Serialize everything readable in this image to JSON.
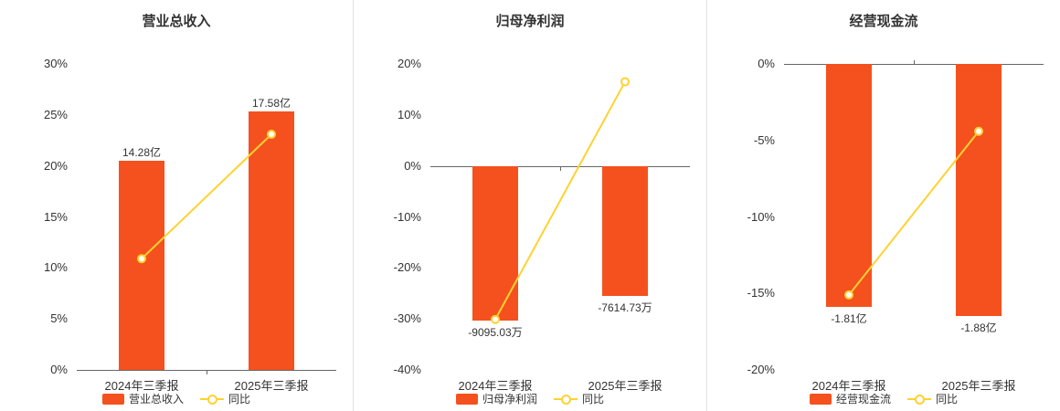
{
  "colors": {
    "bar": "#f4511e",
    "line": "#ffd232",
    "axis_line": "#666666",
    "text": "#333333",
    "divider": "#e2e2e2"
  },
  "chart_data": [
    {
      "type": "bar",
      "title": "营业总收入",
      "categories": [
        "2024年三季报",
        "2025年三季报"
      ],
      "bar_series": {
        "name": "营业总收入",
        "labels": [
          "14.28亿",
          "17.58亿"
        ],
        "values_pct": [
          20.5,
          25.3
        ]
      },
      "line_series": {
        "name": "同比",
        "values_pct": [
          10.9,
          23.1
        ]
      },
      "ylim": [
        0,
        30
      ],
      "ytick_step": 5,
      "ytick_suffix": "%",
      "grid": false,
      "legend_position": "bottom",
      "legend": [
        "营业总收入",
        "同比"
      ]
    },
    {
      "type": "bar",
      "title": "归母净利润",
      "categories": [
        "2024年三季报",
        "2025年三季报"
      ],
      "bar_series": {
        "name": "归母净利润",
        "labels": [
          "-9095.03万",
          "-7614.73万"
        ],
        "values_pct": [
          -30.4,
          -25.5
        ]
      },
      "line_series": {
        "name": "同比",
        "values_pct": [
          -30.1,
          16.5
        ]
      },
      "ylim": [
        -40,
        20
      ],
      "ytick_step": 10,
      "ytick_suffix": "%",
      "grid": false,
      "legend_position": "bottom",
      "legend": [
        "归母净利润",
        "同比"
      ]
    },
    {
      "type": "bar",
      "title": "经营现金流",
      "categories": [
        "2024年三季报",
        "2025年三季报"
      ],
      "bar_series": {
        "name": "经营现金流",
        "labels": [
          "-1.81亿",
          "-1.88亿"
        ],
        "values_pct": [
          -15.9,
          -16.5
        ]
      },
      "line_series": {
        "name": "同比",
        "values_pct": [
          -15.1,
          -4.4
        ]
      },
      "ylim": [
        -20,
        0
      ],
      "ytick_step": 5,
      "ytick_suffix": "%",
      "grid": false,
      "legend_position": "bottom",
      "legend": [
        "经营现金流",
        "同比"
      ]
    }
  ]
}
